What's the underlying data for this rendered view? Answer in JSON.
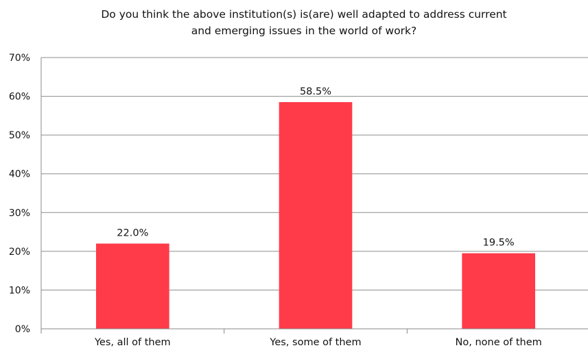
{
  "chart_data": {
    "type": "bar",
    "title_lines": [
      "Do you think the above institution(s) is(are) well adapted to address current",
      "and emerging issues in the world of work?"
    ],
    "categories": [
      "Yes, all of them",
      "Yes, some of them",
      "No, none of them"
    ],
    "values": [
      22.0,
      58.5,
      19.5
    ],
    "data_labels": [
      "22.0%",
      "58.5%",
      "19.5%"
    ],
    "y_ticks": [
      "0%",
      "10%",
      "20%",
      "30%",
      "40%",
      "50%",
      "60%",
      "70%"
    ],
    "ylim": [
      0,
      70
    ],
    "grid": true,
    "legend": "none",
    "bar_color": "#ff3b4a"
  }
}
